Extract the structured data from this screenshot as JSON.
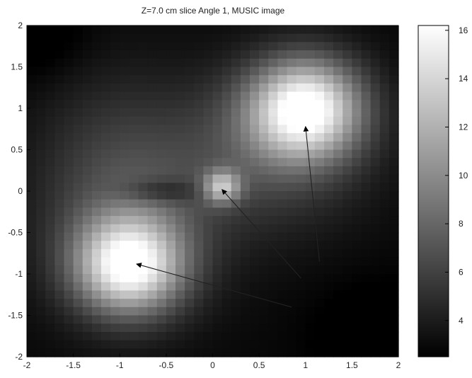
{
  "chart_data": {
    "type": "heatmap",
    "title": "Z=7.0 cm slice Angle 1, MUSIC image",
    "xlabel": "",
    "ylabel": "",
    "xlim": [
      -2,
      2
    ],
    "ylim": [
      -2,
      2
    ],
    "x_ticks": [
      "-2",
      "-1.5",
      "-1",
      "-0.5",
      "0",
      "0.5",
      "1",
      "1.5",
      "2"
    ],
    "y_ticks": [
      "2",
      "1.5",
      "1",
      "0.5",
      "0",
      "-0.5",
      "-1",
      "-1.5",
      "-2"
    ],
    "grid": false,
    "grid_resolution": 40,
    "colormap": "gray",
    "colorbar": {
      "range": [
        2.5,
        16.2
      ],
      "ticks": [
        "16",
        "14",
        "12",
        "10",
        "8",
        "6",
        "4"
      ]
    },
    "peaks": [
      {
        "x": 1.0,
        "y": 1.0,
        "value": 16.2
      },
      {
        "x": -0.9,
        "y": -0.9,
        "value": 15.5
      },
      {
        "x": 0.1,
        "y": 0.05,
        "value": 13.0
      }
    ],
    "arrows": [
      {
        "from": [
          1.15,
          -0.85
        ],
        "to": [
          1.0,
          0.78
        ]
      },
      {
        "from": [
          0.95,
          -1.05
        ],
        "to": [
          0.1,
          0.02
        ]
      },
      {
        "from": [
          0.85,
          -1.4
        ],
        "to": [
          -0.82,
          -0.88
        ]
      }
    ]
  }
}
